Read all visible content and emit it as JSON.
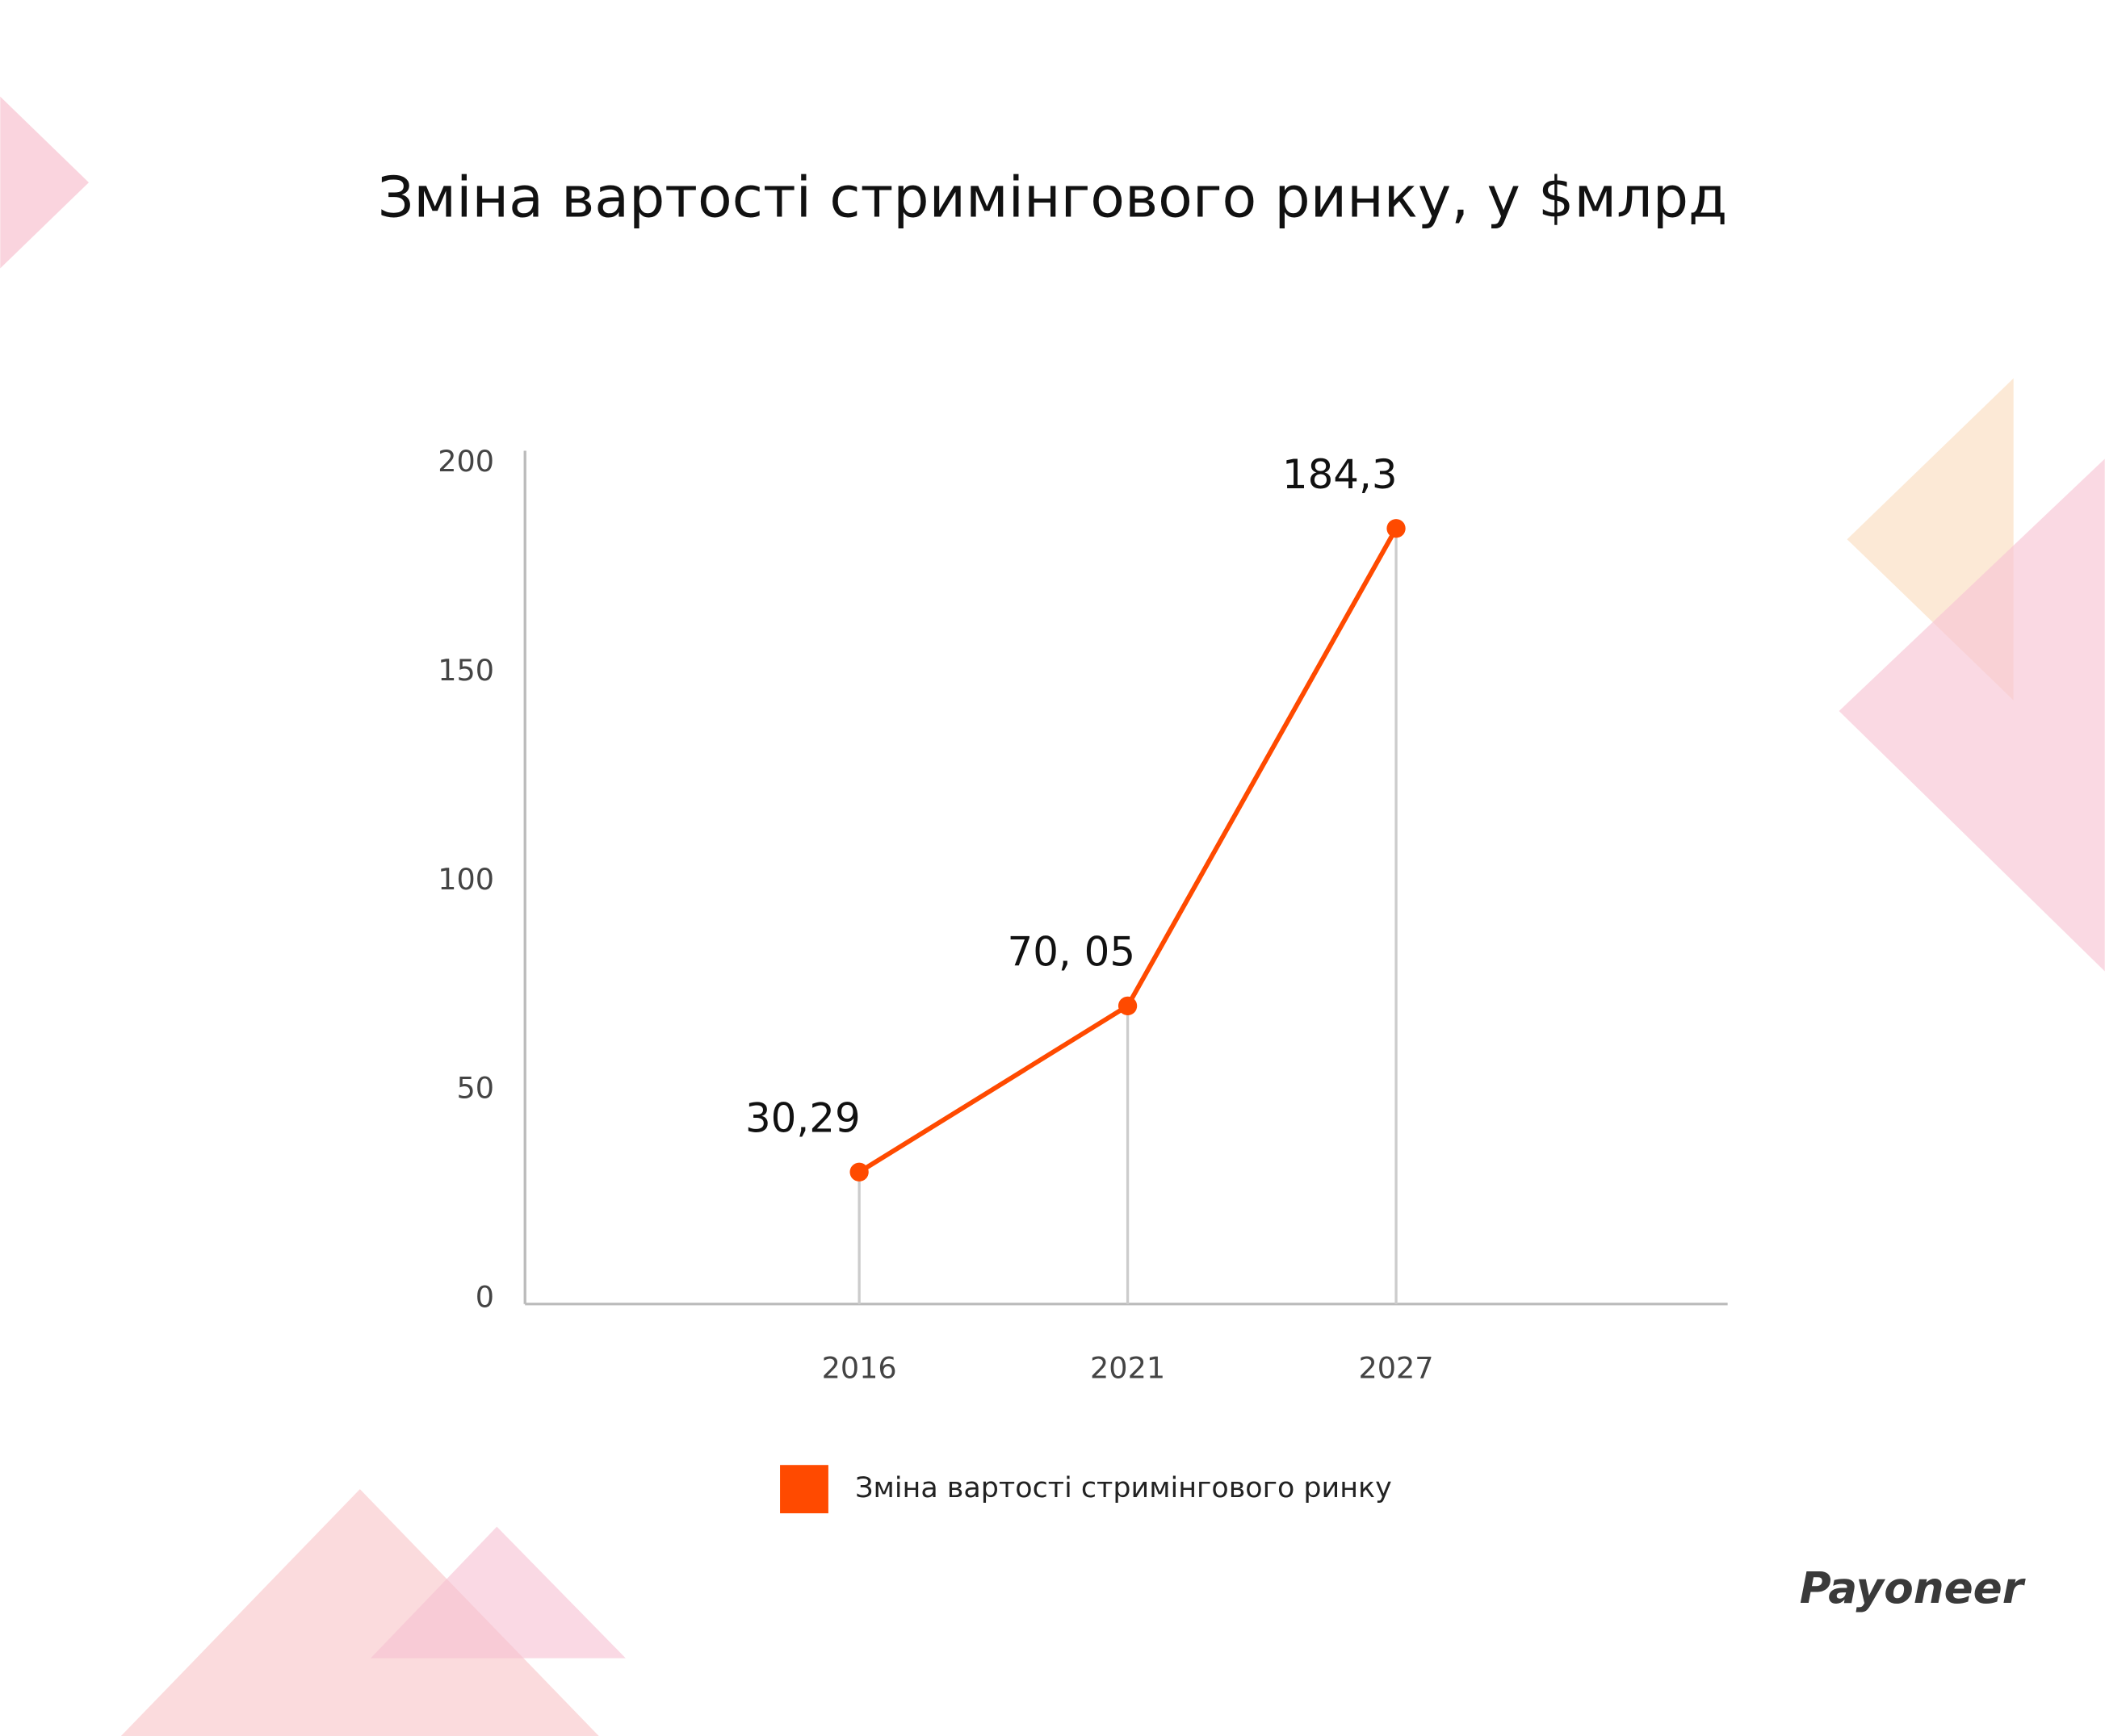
{
  "chart_data": {
    "type": "line",
    "title": "Зміна вартості стримінгового ринку, у $млрд",
    "categories": [
      "2016",
      "2021",
      "2027"
    ],
    "series": [
      {
        "name": "Зміна вартості стримінгового ринку",
        "color": "#ff4a00",
        "values": [
          30.29,
          70.05,
          184.3
        ],
        "value_labels": [
          "30,29",
          "70, 05",
          "184,3"
        ]
      }
    ],
    "ylim": [
      0,
      200
    ],
    "yticks": [
      0,
      50,
      100,
      150,
      200
    ],
    "grid": false,
    "legend": "bottom",
    "logo": "Payoneer"
  }
}
